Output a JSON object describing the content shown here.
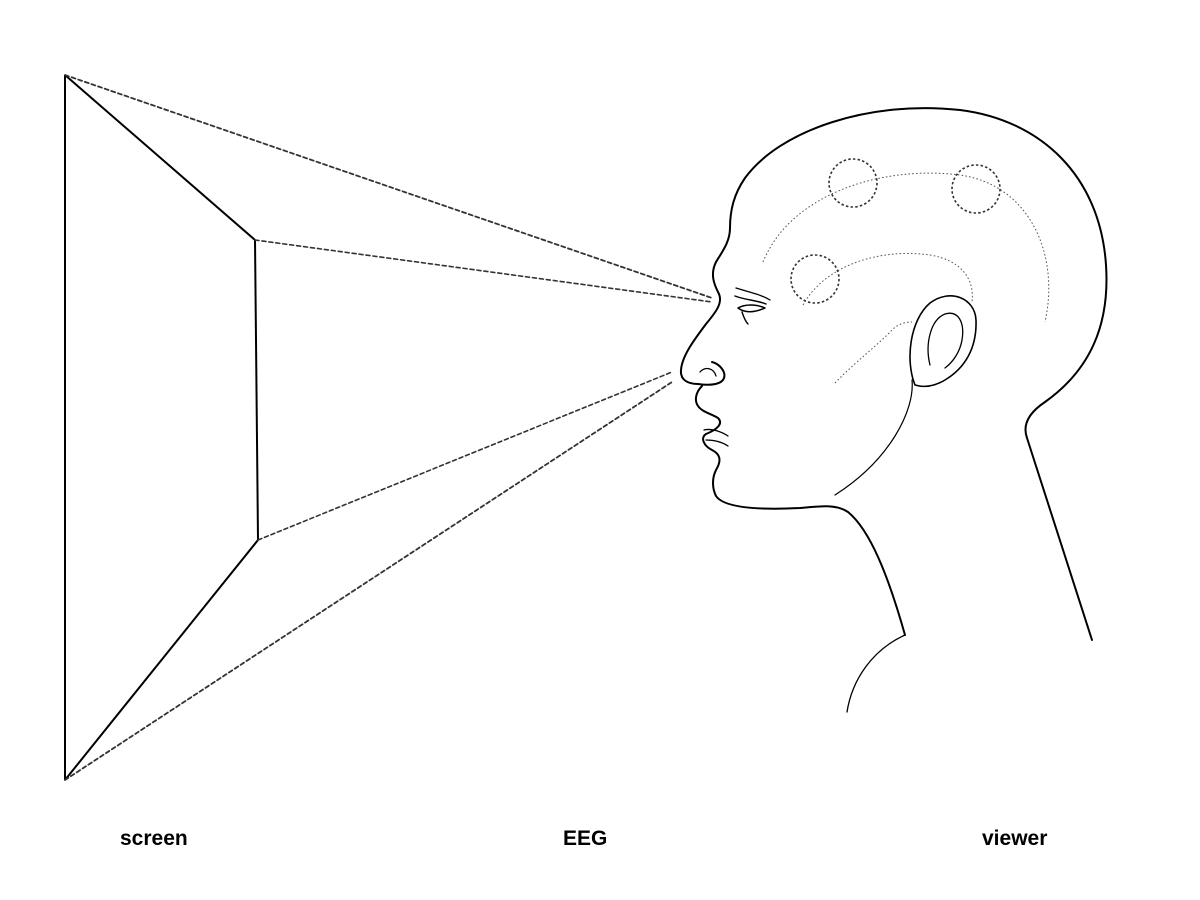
{
  "labels": {
    "screen": "screen",
    "eeg": "EEG",
    "viewer": "viewer"
  },
  "colors": {
    "stroke": "#000000",
    "ray": "#333333",
    "detail": "#555555",
    "background": "#ffffff"
  },
  "eeg_electrode_count": 3
}
